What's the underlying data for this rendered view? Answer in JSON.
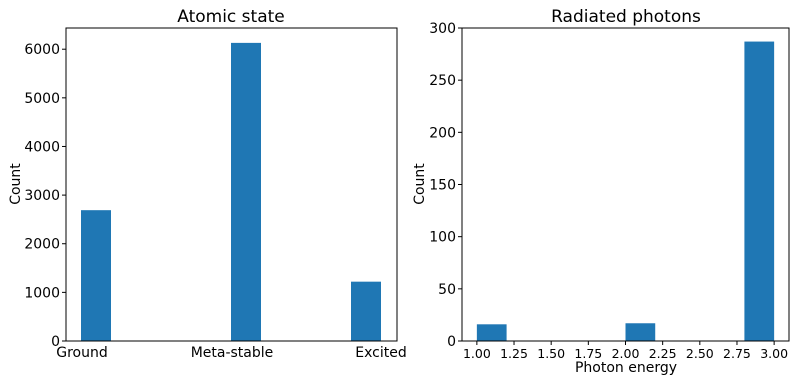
{
  "chart_data": [
    {
      "type": "bar",
      "title": "Atomic state",
      "xlabel": "",
      "ylabel": "Count",
      "categories": [
        "Ground",
        "Meta-stable",
        "Excited"
      ],
      "values": [
        2690,
        6130,
        1220
      ],
      "ylim": [
        0,
        6436
      ],
      "yticks": [
        0,
        1000,
        2000,
        3000,
        4000,
        5000,
        6000
      ],
      "grid": false,
      "color": "#1f77b4"
    },
    {
      "type": "bar",
      "title": "Radiated photons",
      "xlabel": "Photon energy",
      "ylabel": "Count",
      "bins": [
        {
          "x0": 1.0,
          "x1": 1.2,
          "value": 16
        },
        {
          "x0": 2.0,
          "x1": 2.2,
          "value": 17
        },
        {
          "x0": 2.8,
          "x1": 3.0,
          "value": 287
        }
      ],
      "xlim": [
        0.9,
        3.1
      ],
      "ylim": [
        0,
        300
      ],
      "xticks": [
        "1.00",
        "1.25",
        "1.50",
        "1.75",
        "2.00",
        "2.25",
        "2.50",
        "2.75",
        "3.00"
      ],
      "yticks": [
        0,
        50,
        100,
        150,
        200,
        250,
        300
      ],
      "grid": false,
      "color": "#1f77b4"
    }
  ]
}
